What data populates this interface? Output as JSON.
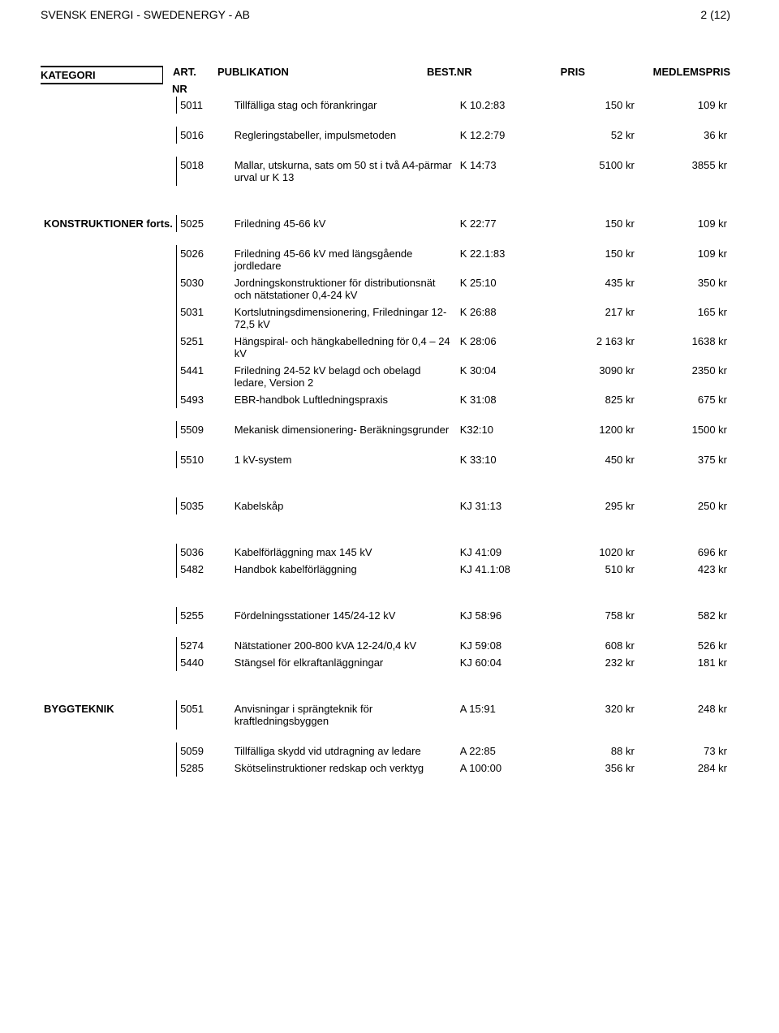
{
  "header": {
    "title": "SVENSK ENERGI - SWEDENERGY - AB",
    "page_indicator": "2 (12)"
  },
  "columns": {
    "kategori": "KATEGORI",
    "artnr_top": "ART.",
    "artnr_bottom": "NR",
    "publikation": "PUBLIKATION",
    "bestnr": "BEST.NR",
    "pris": "PRIS",
    "medlemspris": "MEDLEMSPRIS"
  },
  "groups": [
    {
      "kategori": "",
      "rows": [
        {
          "art": "5011",
          "pub": "Tillfälliga stag och förankringar",
          "best": "K 10.2:83",
          "pris": "150 kr",
          "medlem": "109 kr"
        },
        {
          "art": "5016",
          "pub": "Regleringstabeller, impulsmetoden",
          "best": "K 12.2:79",
          "pris": "52 kr",
          "medlem": "36 kr"
        },
        {
          "art": "5018",
          "pub": "Mallar, utskurna, sats om 50 st i två A4-pärmar urval ur K 13",
          "best": "K 14:73",
          "pris": "5100 kr",
          "medlem": "3855 kr"
        }
      ]
    },
    {
      "kategori": "KONSTRUKTIONER forts.",
      "rows": [
        {
          "art": "5025",
          "pub": "Friledning 45-66 kV",
          "best": "K 22:77",
          "pris": "150 kr",
          "medlem": "109 kr"
        },
        {
          "art": "5026",
          "pub": "Friledning 45-66 kV med längsgående jordledare",
          "best": "K 22.1:83",
          "pris": "150 kr",
          "medlem": "109 kr"
        },
        {
          "art": "5030",
          "pub": "Jordningskonstruktioner för distributionsnät och nätstationer 0,4-24 kV",
          "best": "K 25:10",
          "pris": "435 kr",
          "medlem": "350 kr"
        },
        {
          "art": "5031",
          "pub": "Kortslutningsdimensionering, Friledningar 12-72,5 kV",
          "best": "K 26:88",
          "pris": "217 kr",
          "medlem": "165 kr"
        },
        {
          "art": "5251",
          "pub": "Hängspiral- och hängkabelledning för 0,4 – 24 kV",
          "best": "K 28:06",
          "pris": "2 163 kr",
          "medlem": "1638 kr"
        },
        {
          "art": "5441",
          "pub": "Friledning 24-52 kV belagd och obelagd ledare, Version 2",
          "best": "K 30:04",
          "pris": "3090 kr",
          "medlem": "2350 kr"
        },
        {
          "art": "5493",
          "pub": "EBR-handbok Luftledningspraxis",
          "best": "K 31:08",
          "pris": "825 kr",
          "medlem": "675 kr"
        },
        {
          "art": "5509",
          "pub": "Mekanisk dimensionering- Beräkningsgrunder",
          "best": "K32:10",
          "pris": "1200 kr",
          "medlem": "1500 kr"
        },
        {
          "art": "5510",
          "pub": "1 kV-system",
          "best": "K 33:10",
          "pris": "450 kr",
          "medlem": "375 kr"
        }
      ]
    },
    {
      "kategori": "",
      "rows": [
        {
          "art": "5035",
          "pub": "Kabelskåp",
          "best": "KJ 31:13",
          "pris": "295 kr",
          "medlem": "250 kr"
        }
      ]
    },
    {
      "kategori": "",
      "rows": [
        {
          "art": "5036",
          "pub": "Kabelförläggning max 145 kV",
          "best": "KJ 41:09",
          "pris": "1020 kr",
          "medlem": "696 kr"
        },
        {
          "art": "5482",
          "pub": "Handbok kabelförläggning",
          "best": "KJ 41.1:08",
          "pris": "510 kr",
          "medlem": "423 kr"
        }
      ]
    },
    {
      "kategori": "",
      "rows": [
        {
          "art": "5255",
          "pub": "Fördelningsstationer 145/24-12 kV",
          "best": "KJ 58:96",
          "pris": "758 kr",
          "medlem": "582 kr"
        },
        {
          "art": "5274",
          "pub": "Nätstationer 200-800 kVA 12-24/0,4 kV",
          "best": "KJ 59:08",
          "pris": "608 kr",
          "medlem": "526 kr"
        },
        {
          "art": "5440",
          "pub": "Stängsel för elkraftanläggningar",
          "best": "KJ 60:04",
          "pris": "232 kr",
          "medlem": "181 kr"
        }
      ]
    },
    {
      "kategori": "BYGGTEKNIK",
      "rows": [
        {
          "art": "5051",
          "pub": "Anvisningar i sprängteknik för kraftledningsbyggen",
          "best": "A 15:91",
          "pris": "320 kr",
          "medlem": "248 kr"
        },
        {
          "art": "5059",
          "pub": "Tillfälliga skydd vid utdragning av ledare",
          "best": "A 22:85",
          "pris": "88 kr",
          "medlem": "73 kr"
        },
        {
          "art": "5285",
          "pub": "Skötselinstruktioner redskap och verktyg",
          "best": "A 100:00",
          "pris": "356 kr",
          "medlem": "284 kr"
        }
      ]
    }
  ]
}
